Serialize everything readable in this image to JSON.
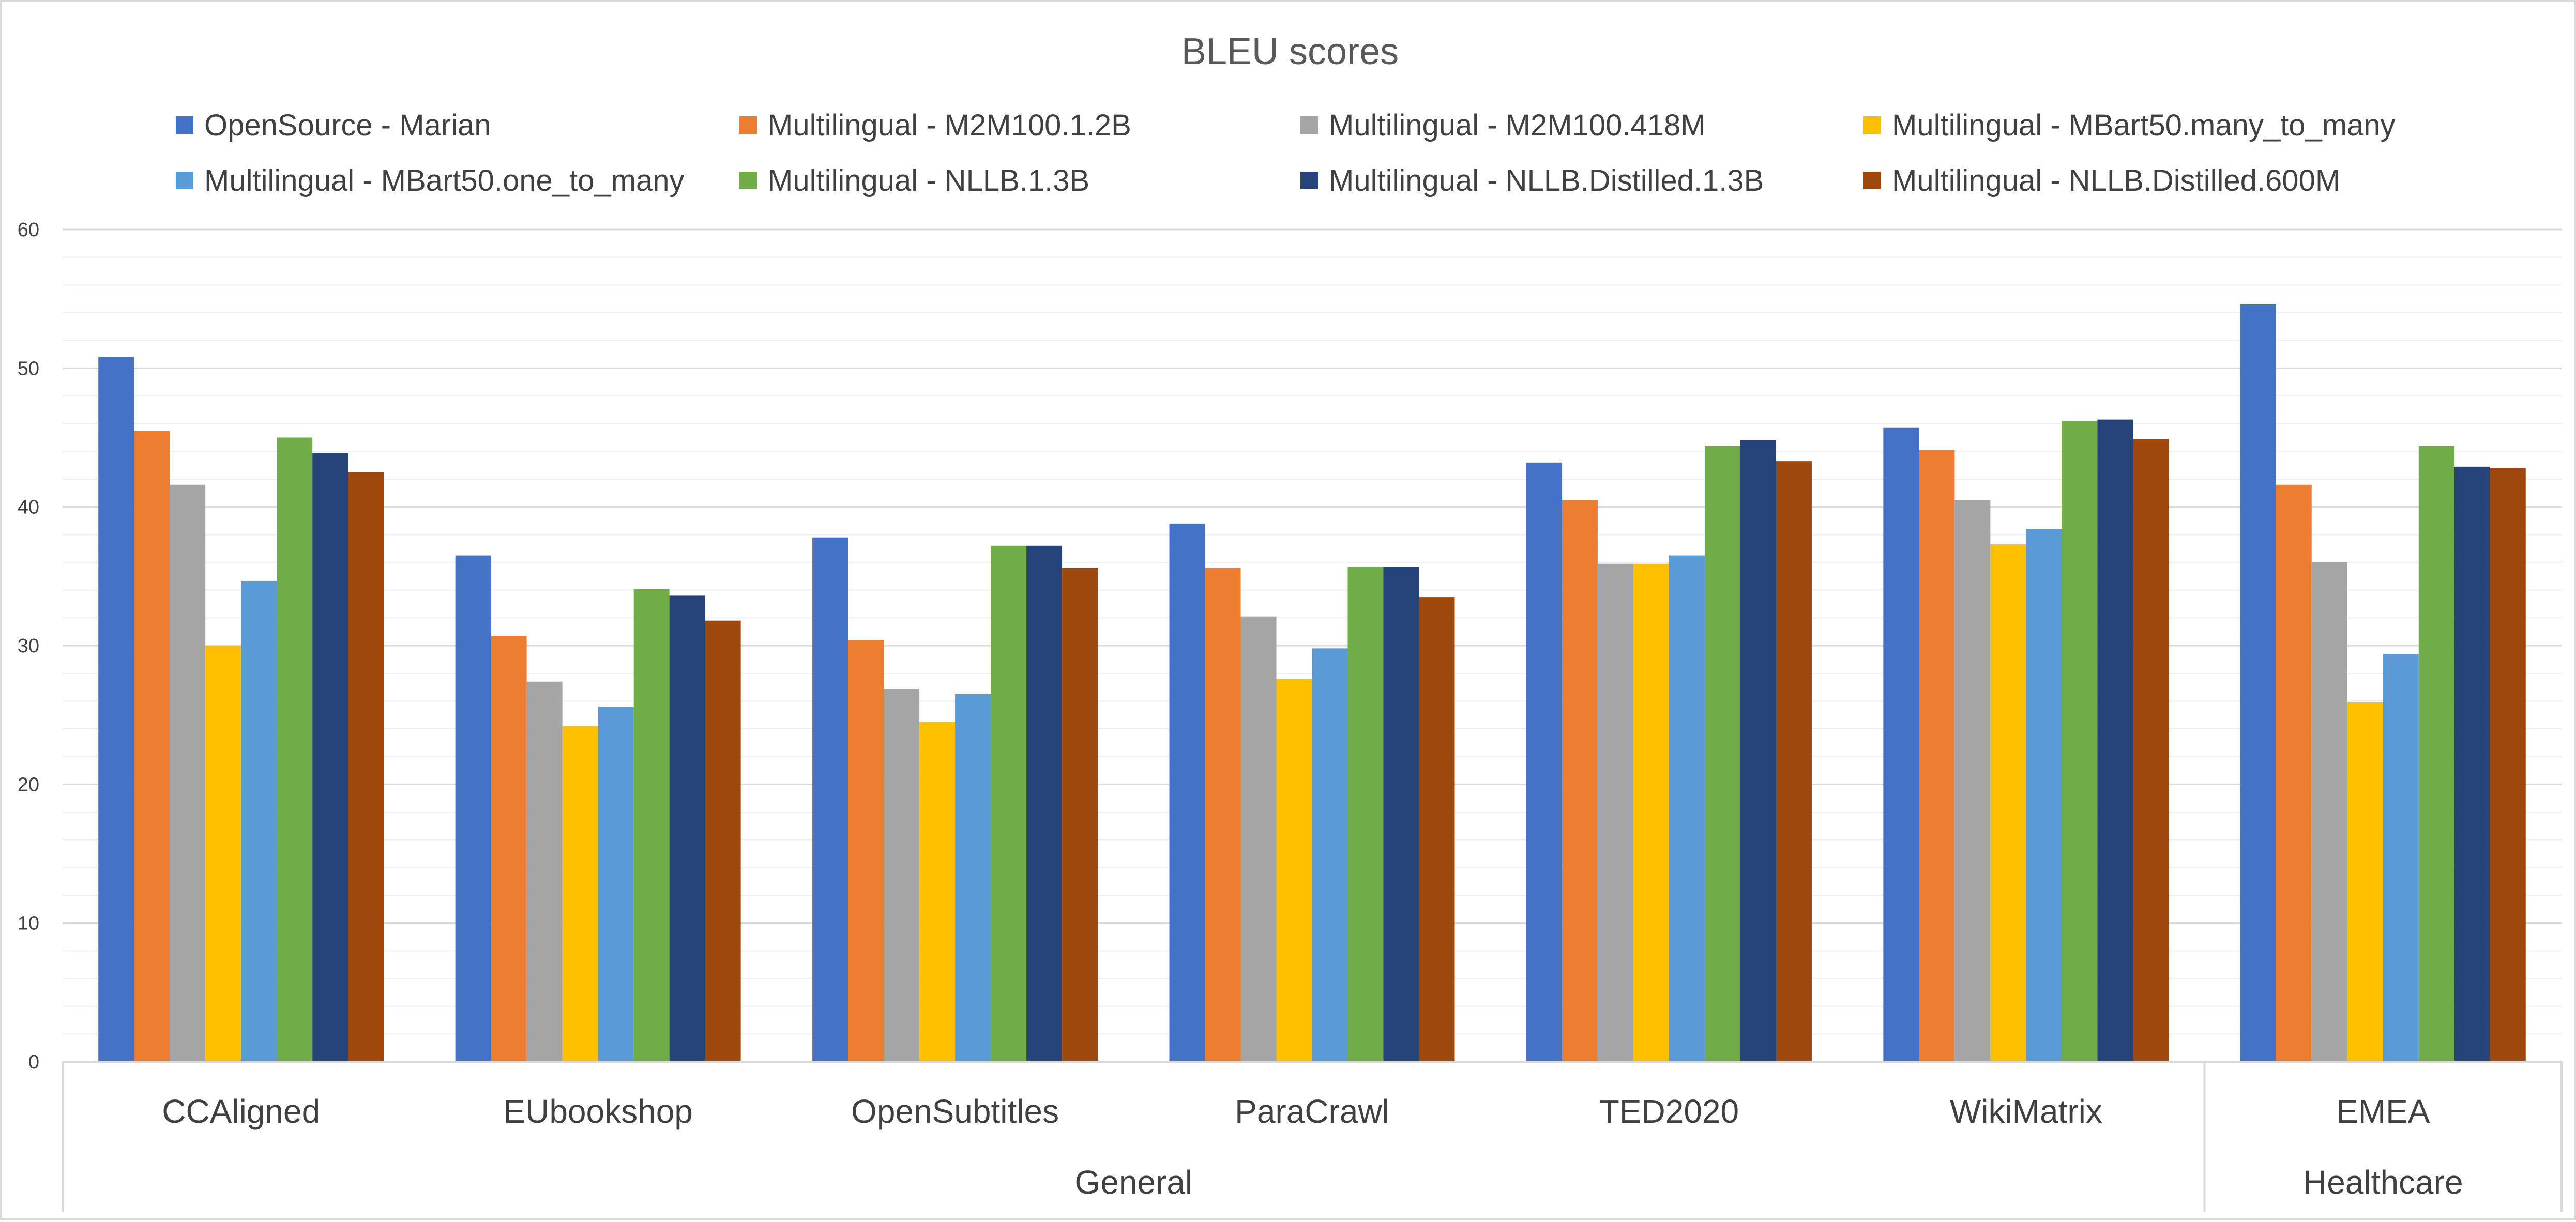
{
  "chart_data": {
    "type": "bar",
    "title": "BLEU scores",
    "xlabel": "",
    "ylabel": "",
    "ylim": [
      0,
      60
    ],
    "yticks": [
      0,
      10,
      20,
      30,
      40,
      50,
      60
    ],
    "grid": true,
    "legend_position": "top",
    "categories": [
      "CCAligned",
      "EUbookshop",
      "OpenSubtitles",
      "ParaCrawl",
      "TED2020",
      "WikiMatrix",
      "EMEA"
    ],
    "category_groups": [
      {
        "label": "General",
        "span": 6
      },
      {
        "label": "Healthcare",
        "span": 1
      }
    ],
    "series": [
      {
        "name": "OpenSource - Marian",
        "color": "#4472C4",
        "values": [
          50.8,
          36.5,
          37.8,
          38.8,
          43.2,
          45.7,
          54.6
        ]
      },
      {
        "name": "Multilingual - M2M100.1.2B",
        "color": "#ED7D31",
        "values": [
          45.5,
          30.7,
          30.4,
          35.6,
          40.5,
          44.1,
          41.6
        ]
      },
      {
        "name": "Multilingual - M2M100.418M",
        "color": "#A5A5A5",
        "values": [
          41.6,
          27.4,
          26.9,
          32.1,
          35.9,
          40.5,
          36.0
        ]
      },
      {
        "name": "Multilingual - MBart50.many_to_many",
        "color": "#FFC000",
        "values": [
          30.0,
          24.2,
          24.5,
          27.6,
          35.9,
          37.3,
          25.9
        ]
      },
      {
        "name": "Multilingual - MBart50.one_to_many",
        "color": "#5B9BD5",
        "values": [
          34.7,
          25.6,
          26.5,
          29.8,
          36.5,
          38.4,
          29.4
        ]
      },
      {
        "name": "Multilingual - NLLB.1.3B",
        "color": "#70AD47",
        "values": [
          45.0,
          34.1,
          37.2,
          35.7,
          44.4,
          46.2,
          44.4
        ]
      },
      {
        "name": "Multilingual - NLLB.Distilled.1.3B",
        "color": "#264478",
        "values": [
          43.9,
          33.6,
          37.2,
          35.7,
          44.8,
          46.3,
          42.9
        ]
      },
      {
        "name": "Multilingual - NLLB.Distilled.600M",
        "color": "#9E480E",
        "values": [
          42.5,
          31.8,
          35.6,
          33.5,
          43.3,
          44.9,
          42.8
        ]
      }
    ],
    "axis_color": "#d9d9d9",
    "gridline_color": "#d9d9d9",
    "minor_gridline_color": "#eeeeee"
  }
}
